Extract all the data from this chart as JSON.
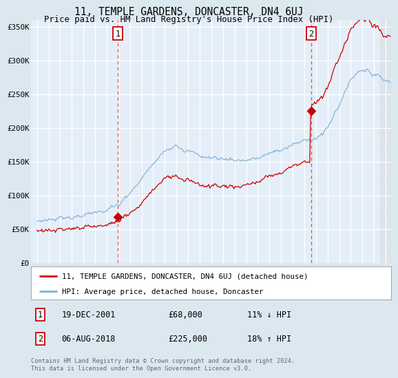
{
  "title": "11, TEMPLE GARDENS, DONCASTER, DN4 6UJ",
  "subtitle": "Price paid vs. HM Land Registry's House Price Index (HPI)",
  "sale1_date": "19-DEC-2001",
  "sale1_price": 68000,
  "sale1_x": 2001.97,
  "sale2_date": "06-AUG-2018",
  "sale2_price": 225000,
  "sale2_x": 2018.59,
  "legend_line1": "11, TEMPLE GARDENS, DONCASTER, DN4 6UJ (detached house)",
  "legend_line2": "HPI: Average price, detached house, Doncaster",
  "annotation1": [
    "1",
    "19-DEC-2001",
    "£68,000",
    "11% ↓ HPI"
  ],
  "annotation2": [
    "2",
    "06-AUG-2018",
    "£225,000",
    "18% ↑ HPI"
  ],
  "footer1": "Contains HM Land Registry data © Crown copyright and database right 2024.",
  "footer2": "This data is licensed under the Open Government Licence v3.0.",
  "bg_color": "#dce8f0",
  "plot_bg": "#e4eef8",
  "red_color": "#cc0000",
  "blue_color": "#7ab0d4",
  "ylim": [
    0,
    360000
  ],
  "yticks": [
    0,
    50000,
    100000,
    150000,
    200000,
    250000,
    300000,
    350000
  ],
  "ytick_labels": [
    "£0",
    "£50K",
    "£100K",
    "£150K",
    "£200K",
    "£250K",
    "£300K",
    "£350K"
  ],
  "xlim": [
    1994.5,
    2025.5
  ],
  "xticks": [
    1995,
    1996,
    1997,
    1998,
    1999,
    2000,
    2001,
    2002,
    2003,
    2004,
    2005,
    2006,
    2007,
    2008,
    2009,
    2010,
    2011,
    2012,
    2013,
    2014,
    2015,
    2016,
    2017,
    2018,
    2019,
    2020,
    2021,
    2022,
    2023,
    2024,
    2025
  ]
}
